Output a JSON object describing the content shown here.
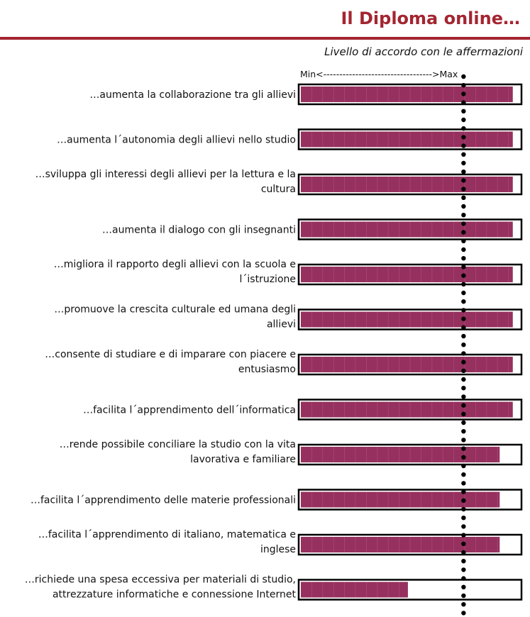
{
  "page": {
    "title": "Il Diploma online…",
    "subtitle": "Livello di accordo con le affermazioni",
    "scale_label": "Min<---------------------------------->Max"
  },
  "colors": {
    "bar_fill": "#96305e",
    "title": "#a32530",
    "frame": "#000000"
  },
  "chart_data": {
    "type": "bar",
    "orientation": "horizontal",
    "value_scale": "relative agreement, 0 = Min, 1 = Max",
    "xlim": [
      0,
      1
    ],
    "reference_line": 0.74,
    "categories": [
      [
        "…aumenta la collaborazione tra gli allievi"
      ],
      [
        "…aumenta l´autonomia degli allievi nello studio"
      ],
      [
        "…sviluppa gli interessi degli allievi per la lettura e la",
        "cultura"
      ],
      [
        "…aumenta il dialogo con gli insegnanti"
      ],
      [
        "…migliora il rapporto degli allievi con la scuola e",
        "l´istruzione"
      ],
      [
        "…promuove la crescita culturale ed umana degli",
        "allievi"
      ],
      [
        "…consente di studiare e di imparare con piacere e",
        "entusiasmo"
      ],
      [
        "…facilita l´apprendimento dell´informatica"
      ],
      [
        "…rende possibile conciliare la studio con la vita",
        "lavorativa e familiare"
      ],
      [
        "…facilita l´apprendimento delle materie professionali"
      ],
      [
        "…facilita l´apprendimento di italiano, matematica e",
        "inglese"
      ],
      [
        "…richiede una spesa eccessiva per materiali di studio,",
        "attrezzature informatiche e connessione Internet"
      ]
    ],
    "values": [
      0.97,
      0.97,
      0.97,
      0.97,
      0.97,
      0.97,
      0.97,
      0.97,
      0.91,
      0.91,
      0.91,
      0.49
    ]
  }
}
